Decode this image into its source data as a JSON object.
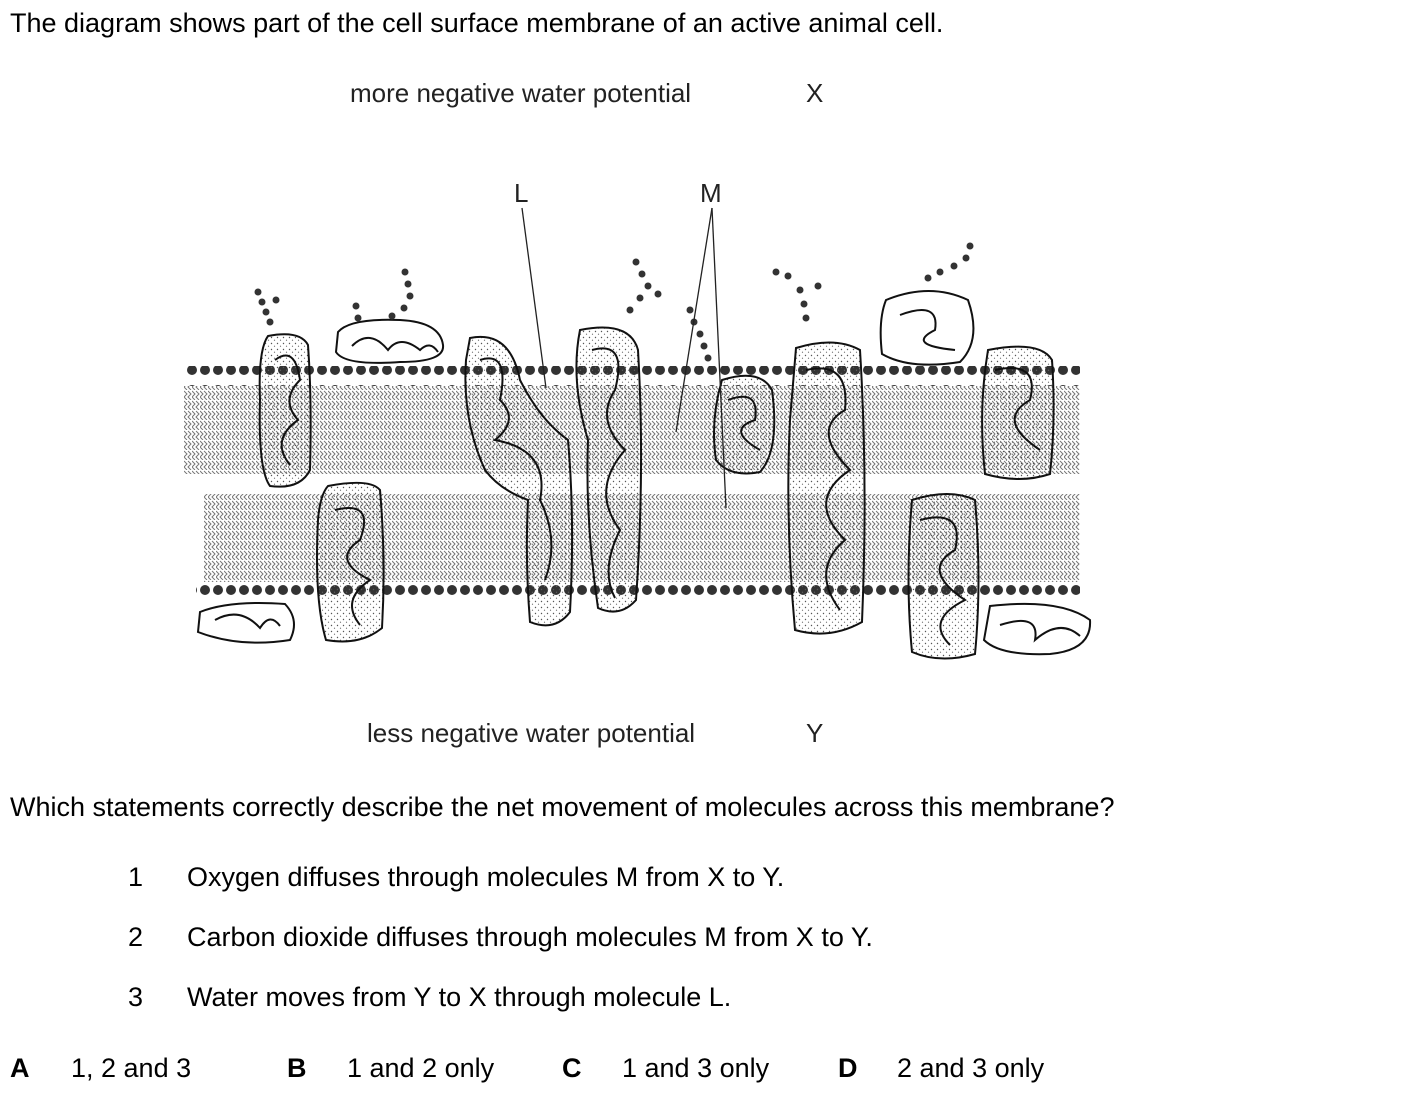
{
  "question": {
    "intro": "The diagram shows part of the cell surface membrane of an active animal cell.",
    "stem": "Which statements correctly describe the net movement of molecules across this membrane?"
  },
  "diagram": {
    "top_label": "more negative water potential",
    "top_side": "X",
    "bottom_label": "less negative water potential",
    "bottom_side": "Y",
    "label_L": "L",
    "label_M": "M"
  },
  "statements": [
    {
      "num": "1",
      "text": "Oxygen diffuses through molecules M from X to Y."
    },
    {
      "num": "2",
      "text": "Carbon dioxide diffuses through molecules M from X to Y."
    },
    {
      "num": "3",
      "text": "Water moves from Y to X through molecule L."
    }
  ],
  "options": [
    {
      "letter": "A",
      "text": "1, 2 and 3"
    },
    {
      "letter": "B",
      "text": "1 and 2 only"
    },
    {
      "letter": "C",
      "text": "1 and 3 only"
    },
    {
      "letter": "D",
      "text": "2 and 3 only"
    }
  ]
}
